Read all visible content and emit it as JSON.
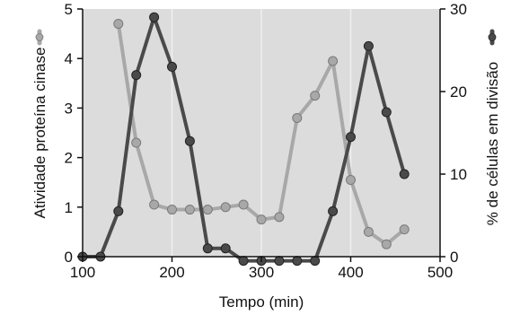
{
  "chart_data": {
    "type": "line",
    "title": "",
    "xlabel": "Tempo (min)",
    "ylabel_left": "Atividade proteína cinase",
    "ylabel_right": "% de células em divisão",
    "xlim": [
      100,
      500
    ],
    "ylim_left": [
      0,
      5
    ],
    "ylim_right": [
      0,
      30
    ],
    "x_ticks": [
      100,
      200,
      300,
      400,
      500
    ],
    "y_ticks_left": [
      0,
      1,
      2,
      3,
      4,
      5
    ],
    "y_ticks_right": [
      0,
      10,
      20,
      30
    ],
    "x_tick_labels": [
      "100",
      "200",
      "300",
      "400",
      "500"
    ],
    "y_tick_labels_left": [
      "0",
      "1",
      "2",
      "3",
      "4",
      "5"
    ],
    "y_tick_labels_right": [
      "0",
      "10",
      "20",
      "30"
    ],
    "grid": "vertical at 200, 300, 400",
    "series": [
      {
        "axis": "left",
        "color": "#a8a8a8",
        "x": [
          140,
          160,
          180,
          200,
          220,
          240,
          260,
          280,
          300,
          320,
          340,
          360,
          380,
          400,
          420,
          440,
          460
        ],
        "y": [
          4.7,
          2.3,
          1.05,
          0.95,
          0.95,
          0.95,
          1.0,
          1.05,
          0.75,
          0.8,
          2.8,
          3.25,
          3.95,
          1.55,
          0.5,
          0.25,
          0.55
        ]
      },
      {
        "axis": "right",
        "color": "#4a4a4a",
        "x": [
          100,
          120,
          140,
          160,
          180,
          200,
          220,
          240,
          260,
          280,
          300,
          320,
          340,
          360,
          380,
          400,
          420,
          440,
          460
        ],
        "y": [
          0,
          0,
          5.5,
          22,
          29,
          23,
          14,
          1,
          1,
          -0.5,
          -0.5,
          -0.5,
          -0.5,
          -0.5,
          5.5,
          14.5,
          25.5,
          17.5,
          10
        ]
      }
    ]
  }
}
